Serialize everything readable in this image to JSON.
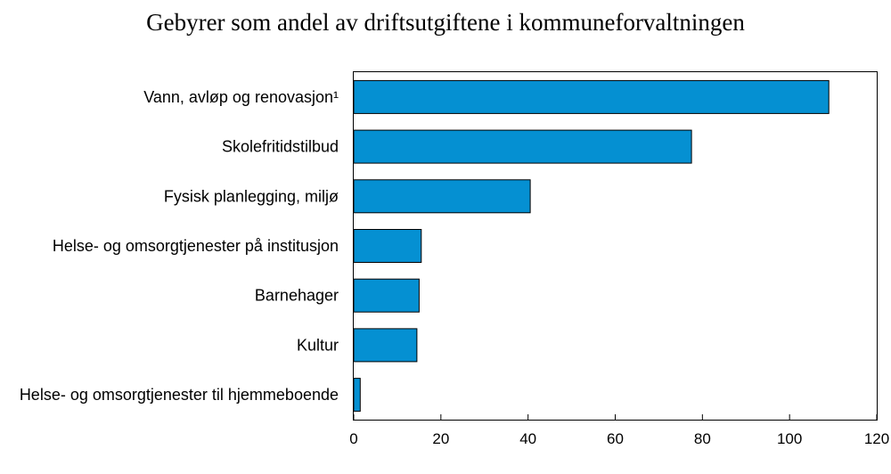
{
  "chart_data": {
    "type": "bar",
    "orientation": "horizontal",
    "title": "Gebyrer som andel av driftsutgiftene i kommuneforvaltningen",
    "categories": [
      "Vann, avløp og renovasjon¹",
      "Skolefritidstilbud",
      "Fysisk planlegging, miljø",
      "Helse- og omsorgtjenester på institusjon",
      "Barnehager",
      "Kultur",
      "Helse- og omsorgtjenester  til hjemmeboende"
    ],
    "values": [
      109,
      77.5,
      40.5,
      15.5,
      15,
      14.5,
      1.5
    ],
    "xlim": [
      0,
      120
    ],
    "xticks": [
      "0",
      "20",
      "40",
      "60",
      "80",
      "100",
      "120"
    ],
    "xlabel": "",
    "ylabel": "",
    "grid": false,
    "bar_color": "#0590D2"
  }
}
